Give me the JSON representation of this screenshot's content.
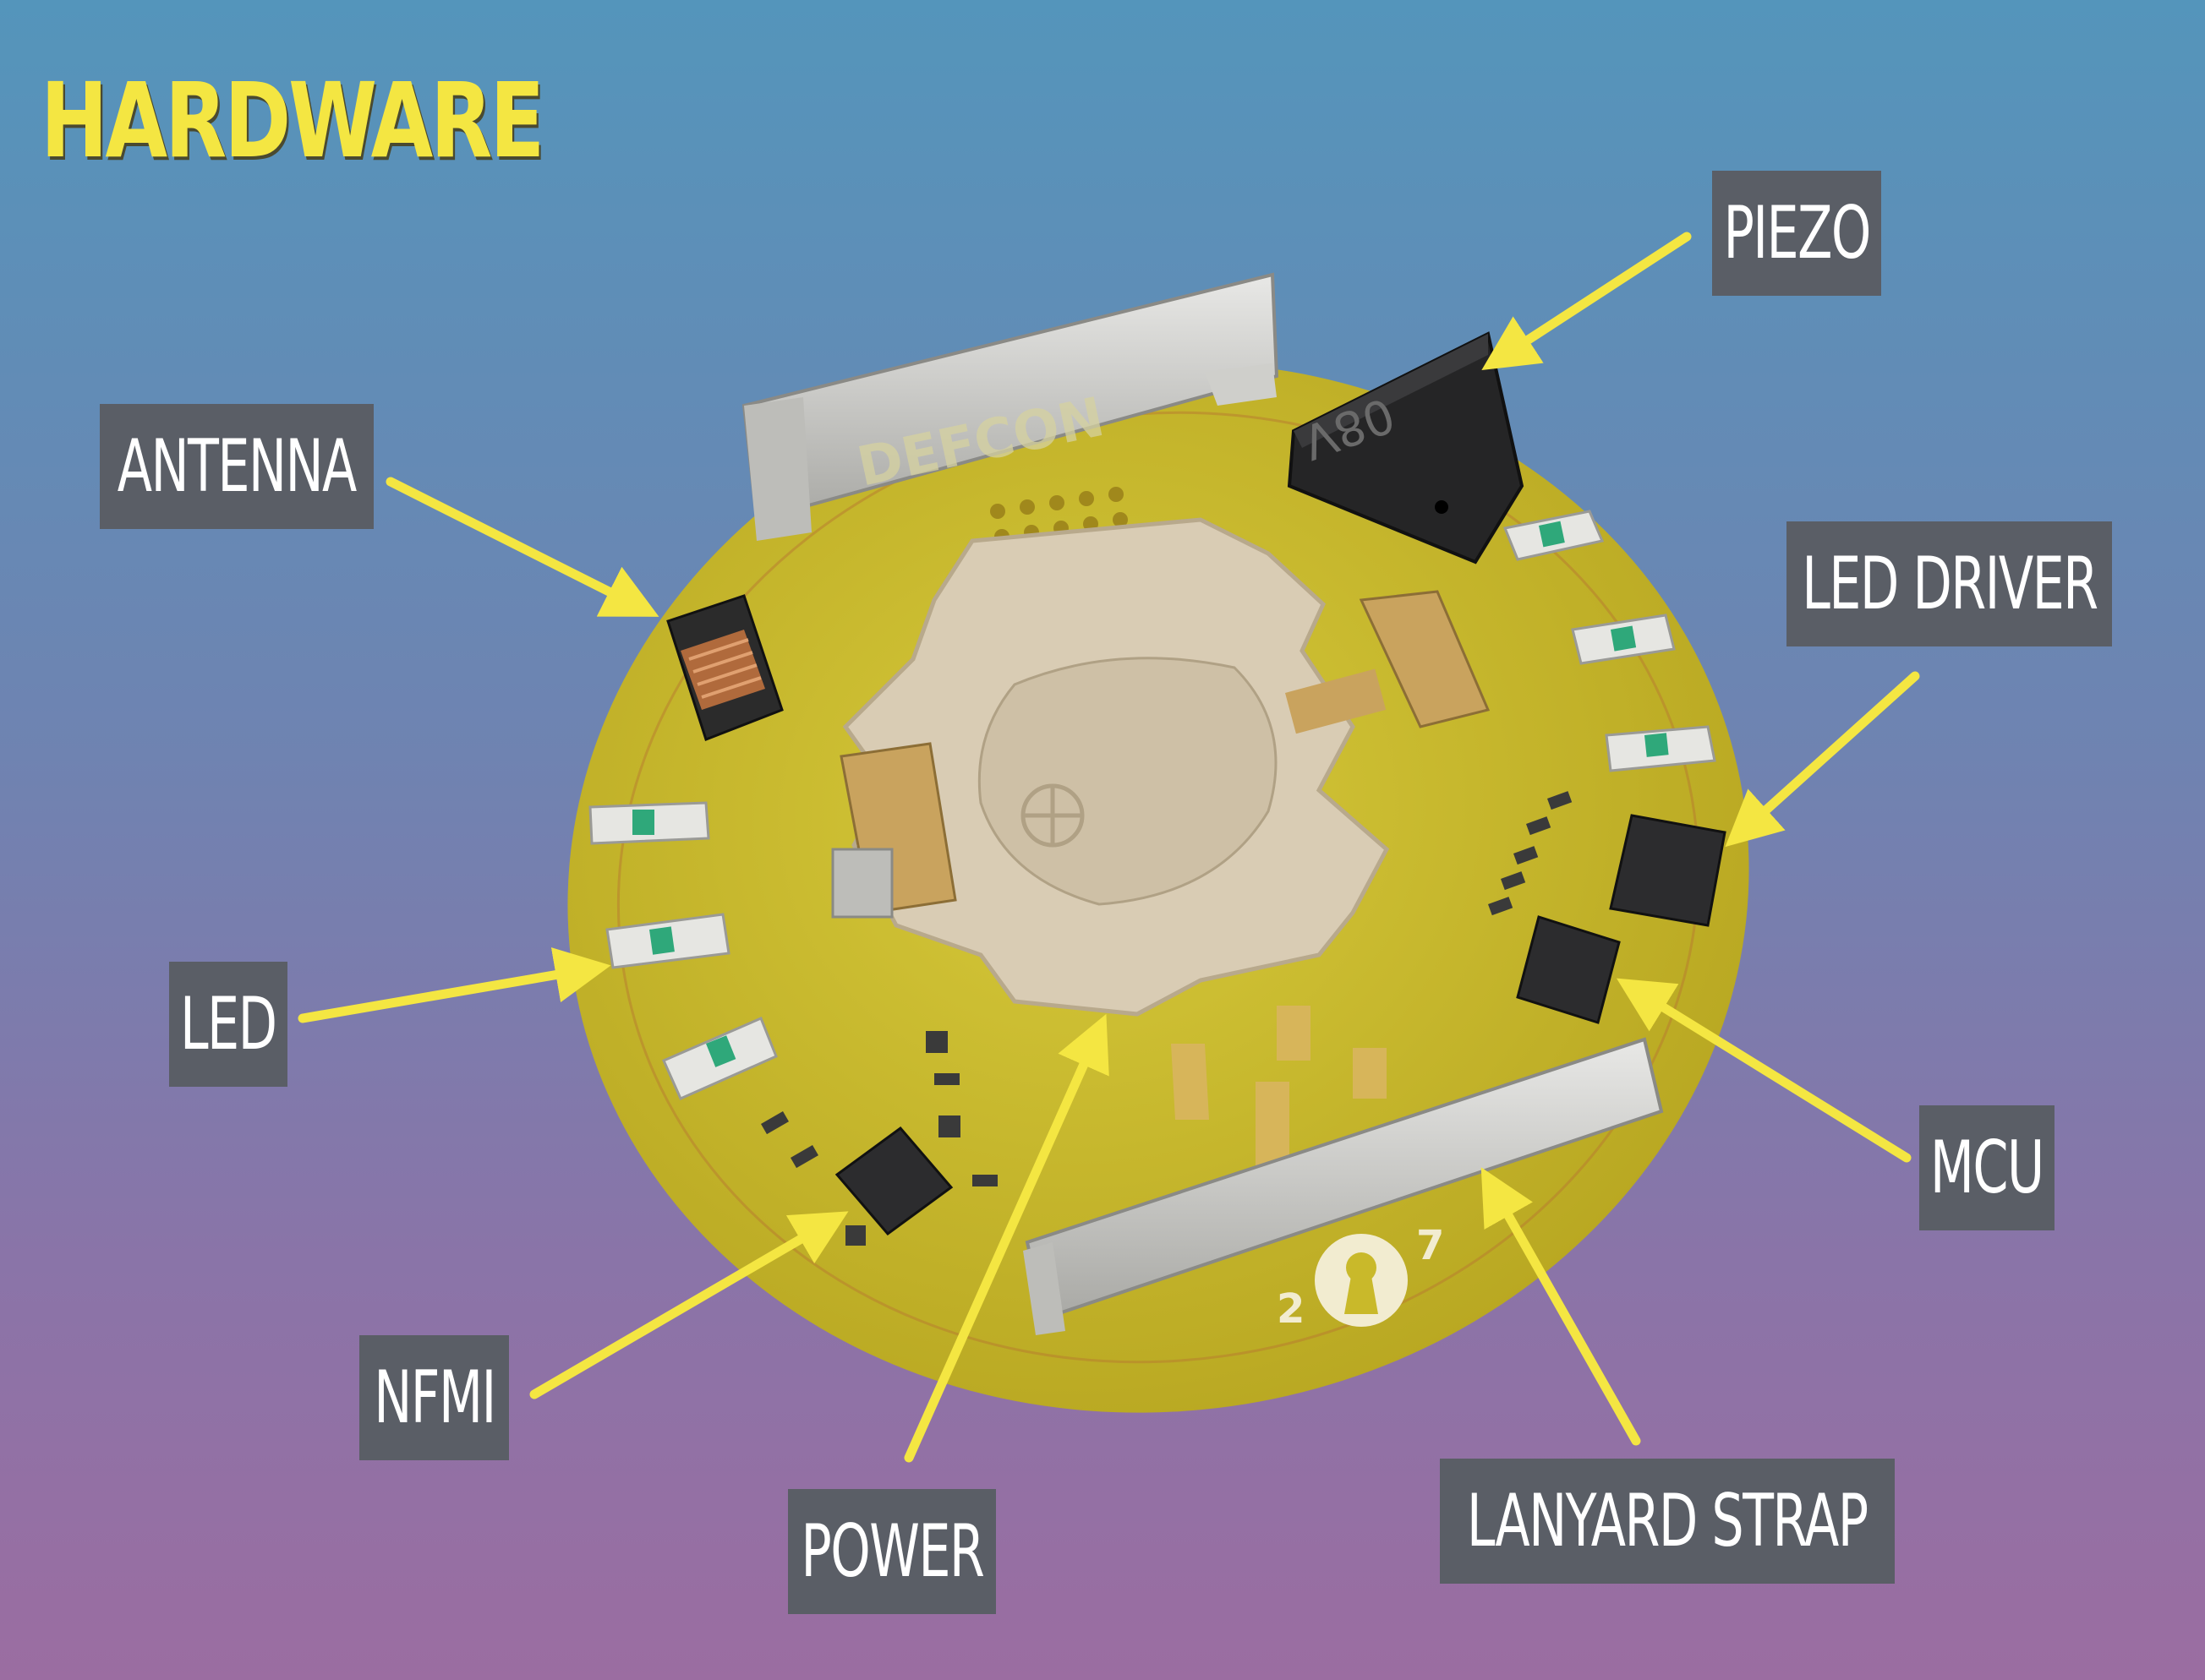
{
  "title": "HARDWARE",
  "labels": {
    "piezo": "PIEZO",
    "antenna": "ANTENNA",
    "led_driver": "LED DRIVER",
    "led": "LED",
    "mcu": "MCU",
    "nfmi": "NFMI",
    "power": "POWER",
    "lanyard_strap": "LANYARD STRAP"
  },
  "board_text": {
    "brand": "DEFCON",
    "logo_left": "2",
    "logo_right": "7",
    "piezo_mark": "08V"
  },
  "colors": {
    "accent_yellow": "#f4e642",
    "label_bg": "#5a5e66",
    "pcb": "#c9b92a"
  }
}
